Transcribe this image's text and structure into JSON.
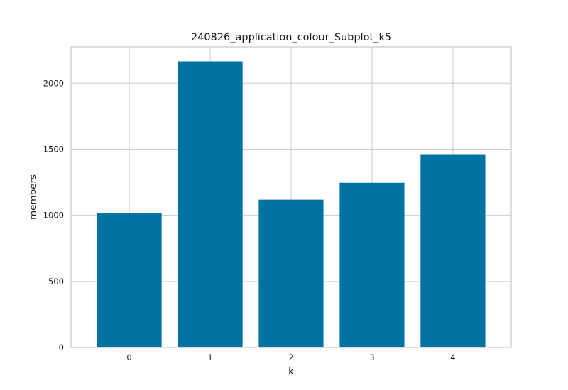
{
  "chart_data": {
    "type": "bar",
    "title": "240826_application_colour_Subplot_k5",
    "xlabel": "k",
    "ylabel": "members",
    "categories": [
      "0",
      "1",
      "2",
      "3",
      "4"
    ],
    "values": [
      1017,
      2165,
      1118,
      1246,
      1462
    ],
    "ylim": [
      0,
      2275
    ],
    "yticks": [
      0,
      500,
      1000,
      1500,
      2000
    ],
    "grid": true,
    "bar_color": "#0173a2",
    "grid_color": "#cccccc",
    "frame_color": "#cccccc"
  }
}
